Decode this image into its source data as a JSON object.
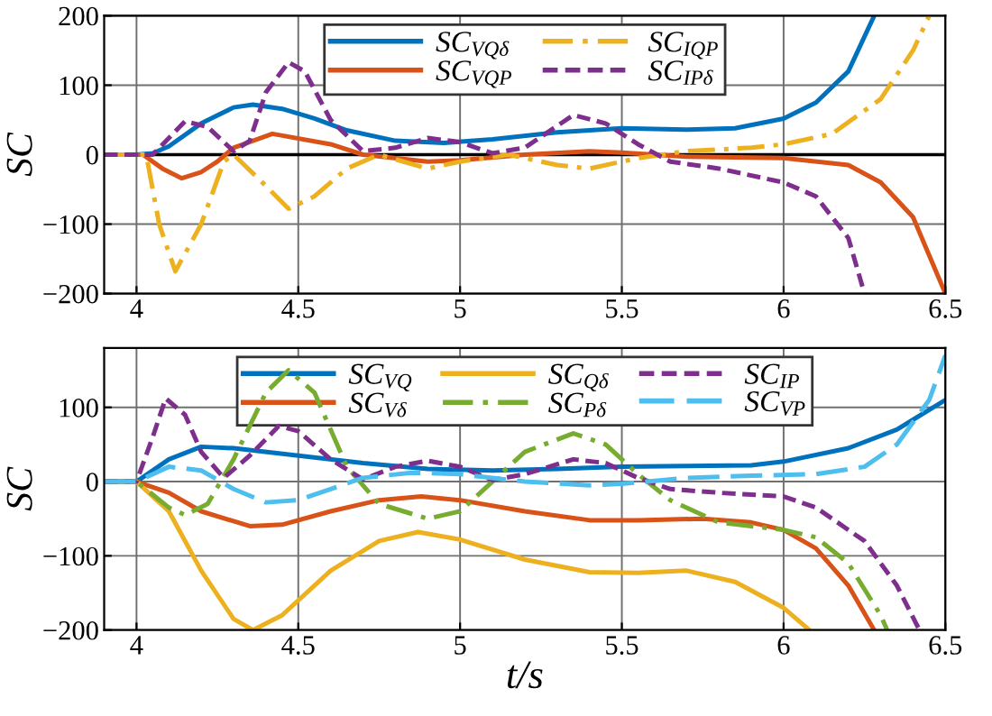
{
  "chart_data": [
    {
      "type": "line",
      "ylabel": "SC",
      "xlim": [
        3.9,
        6.5
      ],
      "ylim": [
        -200,
        200
      ],
      "xticks": [
        4,
        4.5,
        5,
        5.5,
        6,
        6.5
      ],
      "yticks": [
        -200,
        -100,
        0,
        100,
        200
      ],
      "grid": true,
      "legend": "top",
      "ref_lines": [
        {
          "axis": "y",
          "value": 0,
          "color": "#000000"
        }
      ],
      "series": [
        {
          "name": "SC$_{VQδ}$",
          "color": "#0072bd",
          "line_style": "solid",
          "x": [
            3.9,
            4.0,
            4.05,
            4.1,
            4.2,
            4.3,
            4.36,
            4.45,
            4.55,
            4.65,
            4.8,
            4.95,
            5.1,
            5.3,
            5.5,
            5.7,
            5.85,
            6.0,
            6.1,
            6.2,
            6.28
          ],
          "values": [
            0,
            0,
            2,
            12,
            45,
            68,
            72,
            66,
            52,
            35,
            20,
            17,
            22,
            32,
            38,
            36,
            38,
            52,
            75,
            120,
            200
          ]
        },
        {
          "name": "SC$_{VQP}$",
          "color": "#d95319",
          "line_style": "solid",
          "x": [
            3.9,
            4.02,
            4.08,
            4.14,
            4.2,
            4.25,
            4.3,
            4.42,
            4.6,
            4.7,
            4.9,
            5.0,
            5.2,
            5.4,
            5.5,
            5.7,
            6.0,
            6.2,
            6.3,
            6.4,
            6.5
          ],
          "values": [
            0,
            0,
            -20,
            -34,
            -25,
            -10,
            10,
            30,
            15,
            0,
            -10,
            -8,
            0,
            5,
            3,
            -3,
            -5,
            -15,
            -40,
            -90,
            -200
          ]
        },
        {
          "name": "SC$_{IQP}$",
          "color": "#edb120",
          "line_style": "dashdot",
          "x": [
            3.9,
            4.03,
            4.07,
            4.12,
            4.2,
            4.27,
            4.3,
            4.4,
            4.47,
            4.55,
            4.65,
            4.75,
            4.9,
            5.0,
            5.15,
            5.3,
            5.4,
            5.55,
            5.7,
            5.9,
            6.0,
            6.15,
            6.3,
            6.4,
            6.45
          ],
          "values": [
            0,
            0,
            -100,
            -168,
            -100,
            -10,
            0,
            -45,
            -78,
            -60,
            -20,
            0,
            -20,
            -10,
            0,
            -15,
            -20,
            -5,
            5,
            10,
            15,
            30,
            80,
            150,
            200
          ]
        },
        {
          "name": "SC$_{IPδ}$",
          "color": "#7e2f8e",
          "line_style": "dashed",
          "x": [
            3.9,
            4.05,
            4.15,
            4.22,
            4.3,
            4.35,
            4.4,
            4.47,
            4.52,
            4.6,
            4.7,
            4.8,
            4.9,
            5.0,
            5.1,
            5.2,
            5.35,
            5.45,
            5.55,
            5.65,
            5.8,
            6.0,
            6.1,
            6.2,
            6.25
          ],
          "values": [
            0,
            0,
            48,
            40,
            5,
            20,
            90,
            133,
            120,
            50,
            5,
            10,
            24,
            18,
            2,
            10,
            57,
            45,
            15,
            -10,
            -20,
            -40,
            -60,
            -120,
            -200
          ]
        }
      ]
    },
    {
      "type": "line",
      "xlabel": "t/s",
      "ylabel": "SC",
      "xlim": [
        3.9,
        6.5
      ],
      "ylim": [
        -200,
        180
      ],
      "xticks": [
        4,
        4.5,
        5,
        5.5,
        6,
        6.5
      ],
      "yticks": [
        -200,
        -100,
        0,
        100
      ],
      "grid": true,
      "legend": "top",
      "series": [
        {
          "name": "SC$_{VQ}$",
          "color": "#0072bd",
          "line_style": "solid",
          "x": [
            3.9,
            4.0,
            4.1,
            4.2,
            4.3,
            4.5,
            4.7,
            4.9,
            5.1,
            5.3,
            5.5,
            5.7,
            5.9,
            6.0,
            6.2,
            6.35,
            6.5
          ],
          "values": [
            0,
            0,
            30,
            47,
            45,
            35,
            25,
            17,
            15,
            17,
            20,
            21,
            22,
            27,
            45,
            70,
            110
          ]
        },
        {
          "name": "SC$_{Vδ}$",
          "color": "#d95319",
          "line_style": "solid",
          "x": [
            3.9,
            4.0,
            4.1,
            4.2,
            4.35,
            4.45,
            4.6,
            4.75,
            4.88,
            5.0,
            5.2,
            5.4,
            5.55,
            5.75,
            5.9,
            6.0,
            6.1,
            6.2,
            6.28
          ],
          "values": [
            0,
            0,
            -15,
            -40,
            -60,
            -58,
            -40,
            -25,
            -20,
            -25,
            -40,
            -52,
            -52,
            -50,
            -55,
            -65,
            -90,
            -140,
            -200
          ]
        },
        {
          "name": "SC$_{Qδ}$",
          "color": "#edb120",
          "line_style": "solid",
          "x": [
            3.9,
            4.0,
            4.1,
            4.2,
            4.3,
            4.36,
            4.45,
            4.6,
            4.75,
            4.87,
            5.0,
            5.2,
            5.4,
            5.55,
            5.7,
            5.85,
            6.0,
            6.08
          ],
          "values": [
            0,
            0,
            -40,
            -120,
            -185,
            -200,
            -180,
            -120,
            -80,
            -68,
            -78,
            -105,
            -122,
            -123,
            -120,
            -135,
            -170,
            -200
          ]
        },
        {
          "name": "SC$_{Pδ}$",
          "color": "#77ac30",
          "line_style": "dashdot",
          "x": [
            3.9,
            4.0,
            4.1,
            4.15,
            4.22,
            4.3,
            4.4,
            4.47,
            4.55,
            4.65,
            4.75,
            4.9,
            5.0,
            5.1,
            5.2,
            5.35,
            5.45,
            5.55,
            5.65,
            5.8,
            6.0,
            6.1,
            6.2,
            6.3,
            6.32
          ],
          "values": [
            0,
            0,
            -35,
            -45,
            -30,
            30,
            120,
            150,
            120,
            20,
            -30,
            -50,
            -40,
            0,
            40,
            65,
            50,
            10,
            -25,
            -55,
            -65,
            -75,
            -110,
            -180,
            -200
          ]
        },
        {
          "name": "SC$_{IP}$",
          "color": "#7e2f8e",
          "line_style": "dashed",
          "x": [
            3.9,
            4.0,
            4.05,
            4.09,
            4.15,
            4.2,
            4.27,
            4.35,
            4.44,
            4.5,
            4.6,
            4.7,
            4.8,
            4.9,
            5.0,
            5.1,
            5.2,
            5.35,
            5.45,
            5.55,
            5.65,
            5.8,
            6.0,
            6.1,
            6.25,
            6.35,
            6.42
          ],
          "values": [
            0,
            0,
            60,
            112,
            90,
            40,
            5,
            35,
            75,
            68,
            30,
            3,
            20,
            28,
            20,
            2,
            10,
            30,
            25,
            5,
            -10,
            -15,
            -20,
            -35,
            -80,
            -140,
            -200
          ]
        },
        {
          "name": "SC$_{VP}$",
          "color": "#4dbeee",
          "line_style": "longdash",
          "x": [
            3.9,
            4.0,
            4.1,
            4.2,
            4.3,
            4.4,
            4.5,
            4.6,
            4.7,
            4.85,
            5.0,
            5.2,
            5.4,
            5.5,
            5.7,
            5.9,
            6.1,
            6.25,
            6.35,
            6.45,
            6.5
          ],
          "values": [
            0,
            0,
            20,
            15,
            -10,
            -28,
            -25,
            -10,
            5,
            12,
            10,
            0,
            -5,
            -3,
            5,
            8,
            10,
            20,
            50,
            110,
            170
          ]
        }
      ]
    }
  ]
}
